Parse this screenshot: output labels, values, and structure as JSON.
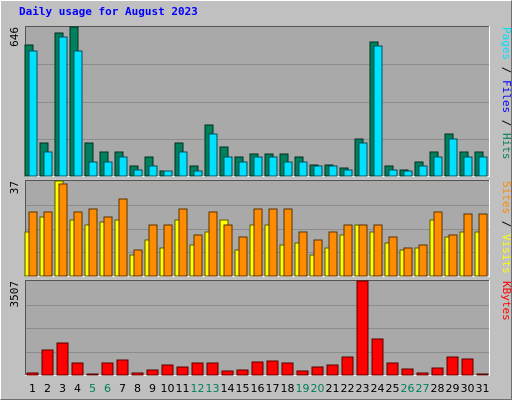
{
  "colors": {
    "frame_bg": "#c0c0c0",
    "plot_bg": "#a9a9a9",
    "gridline": "#8c8c8c",
    "hits": "#00805c",
    "files": "#00e0ff",
    "sites": "#ffff00",
    "visits": "#ff8c00",
    "kbytes": "#ff0000",
    "title_text": "#0000ff",
    "weekend_text": "#00805c"
  },
  "chart_data": {
    "type": "bar",
    "title": "Daily usage for August 2023",
    "categories": [
      "1",
      "2",
      "3",
      "4",
      "5",
      "6",
      "7",
      "8",
      "9",
      "10",
      "11",
      "12",
      "13",
      "14",
      "15",
      "16",
      "17",
      "18",
      "19",
      "20",
      "21",
      "22",
      "23",
      "24",
      "25",
      "26",
      "27",
      "28",
      "29",
      "30",
      "31"
    ],
    "weekend_days": [
      "5",
      "6",
      "12",
      "13",
      "19",
      "20",
      "26",
      "27"
    ],
    "panels": [
      {
        "max_label": "646",
        "ylim": [
          0,
          646
        ],
        "side_label": [
          {
            "text": "Pages",
            "color": "#00e0ff"
          },
          {
            "text": " / ",
            "color": "#000000"
          },
          {
            "text": "Files",
            "color": "#0000ff"
          },
          {
            "text": " / ",
            "color": "#000000"
          },
          {
            "text": "Hits",
            "color": "#00805c"
          }
        ],
        "series": [
          {
            "name": "Hits",
            "color": "#00805c",
            "values": [
              566,
              145,
              621,
              646,
              145,
              104,
              104,
              42,
              83,
              21,
              145,
              42,
              222,
              124,
              83,
              94,
              94,
              94,
              83,
              49,
              49,
              35,
              160,
              580,
              42,
              28,
              62,
              104,
              180,
              104,
              104
            ]
          },
          {
            "name": "Files",
            "color": "#00e0ff",
            "values": [
              542,
              104,
              601,
              542,
              62,
              62,
              83,
              28,
              42,
              21,
              104,
              21,
              180,
              83,
              62,
              83,
              83,
              62,
              62,
              42,
              42,
              28,
              145,
              562,
              28,
              21,
              42,
              83,
              160,
              83,
              83
            ]
          }
        ]
      },
      {
        "max_label": "37",
        "ylim": [
          0,
          37
        ],
        "side_label": [
          {
            "text": "Sites",
            "color": "#ff8c00"
          },
          {
            "text": " / ",
            "color": "#000000"
          },
          {
            "text": "Visits",
            "color": "#ffff00"
          }
        ],
        "series": [
          {
            "name": "Sites",
            "color": "#ffff00",
            "values": [
              17,
              23,
              37,
              22,
              20,
              21,
              22,
              8,
              14,
              11,
              22,
              12,
              17,
              22,
              10,
              20,
              20,
              12,
              13,
              8,
              11,
              16,
              20,
              17,
              13,
              10,
              11,
              22,
              15,
              17,
              17
            ]
          },
          {
            "name": "Visits",
            "color": "#ff8c00",
            "values": [
              25,
              25,
              36,
              25,
              26,
              23,
              30,
              10,
              20,
              20,
              26,
              16,
              25,
              20,
              15,
              26,
              26,
              26,
              17,
              14,
              17,
              20,
              20,
              20,
              15,
              11,
              12,
              25,
              16,
              24,
              24
            ]
          }
        ]
      },
      {
        "max_label": "3507",
        "ylim": [
          0,
          3507
        ],
        "side_label": [
          {
            "text": "KBytes",
            "color": "#ff0000"
          }
        ],
        "series": [
          {
            "name": "KBytes",
            "color": "#ff0000",
            "values": [
              92,
              923,
              1199,
              438,
              46,
              438,
              553,
              92,
              185,
              369,
              300,
              461,
              438,
              138,
              185,
              484,
              507,
              438,
              138,
              300,
              369,
              669,
              3507,
              1338,
              438,
              208,
              69,
              277,
              669,
              600,
              46
            ]
          }
        ]
      }
    ]
  }
}
